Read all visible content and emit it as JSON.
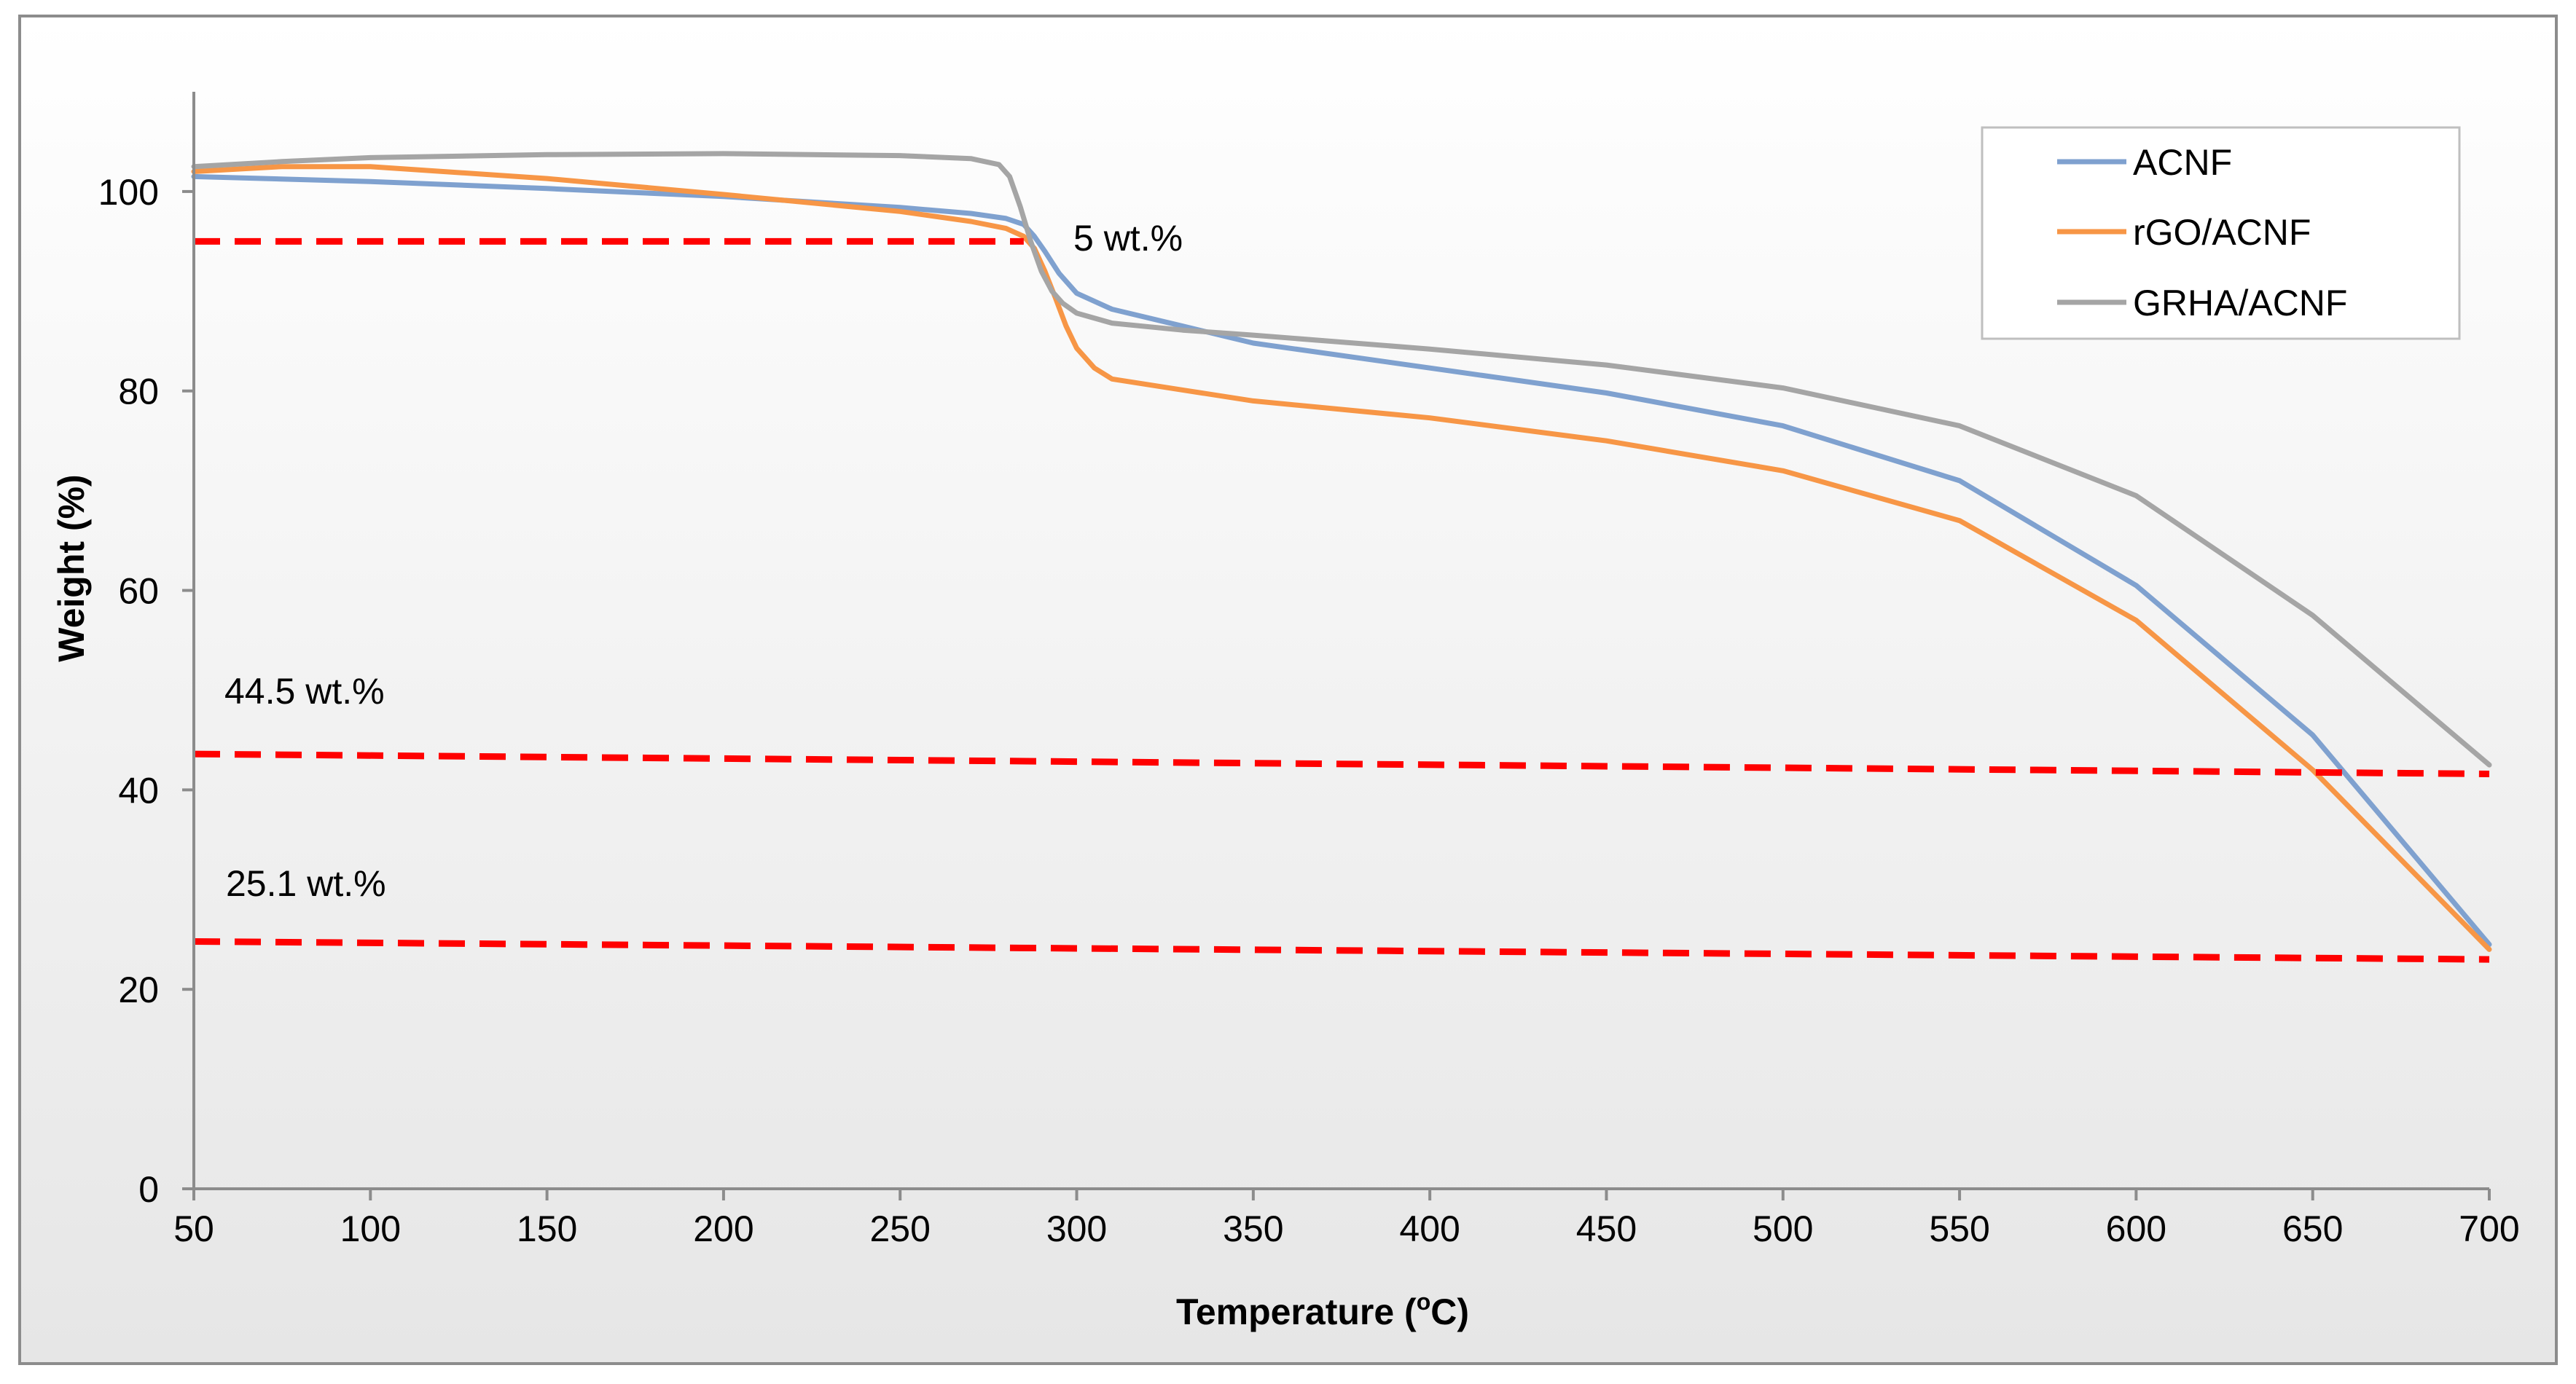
{
  "chart_data": {
    "type": "line",
    "xlabel": "Temperature (",
    "xlabel_sup": "o",
    "xlabel_end": "C)",
    "ylabel": "Weight (%)",
    "xlim": [
      50,
      700
    ],
    "ylim": [
      0,
      110
    ],
    "x_ticks": [
      "50",
      "100",
      "150",
      "200",
      "250",
      "300",
      "350",
      "400",
      "450",
      "500",
      "550",
      "600",
      "650",
      "700"
    ],
    "y_ticks": [
      "0",
      "20",
      "40",
      "60",
      "80",
      "100"
    ],
    "x_tick_values": [
      50,
      100,
      150,
      200,
      250,
      300,
      350,
      400,
      450,
      500,
      550,
      600,
      650,
      700
    ],
    "y_tick_values": [
      0,
      20,
      40,
      60,
      80,
      100
    ],
    "legend_position": "top-right",
    "series": [
      {
        "name": "ACNF",
        "color": "#7fa1cf",
        "x": [
          50,
          100,
          150,
          200,
          250,
          270,
          280,
          285,
          288,
          291,
          295,
          300,
          310,
          330,
          350,
          400,
          450,
          500,
          550,
          600,
          650,
          700
        ],
        "y": [
          101.5,
          101.0,
          100.3,
          99.5,
          98.4,
          97.8,
          97.3,
          96.7,
          95.5,
          94.0,
          91.8,
          89.8,
          88.2,
          86.5,
          84.8,
          82.3,
          79.8,
          76.5,
          71.0,
          60.5,
          45.5,
          24.5
        ]
      },
      {
        "name": "rGO/ACNF",
        "color": "#f79646",
        "x": [
          50,
          75,
          100,
          150,
          200,
          250,
          270,
          280,
          285,
          288,
          291,
          294,
          297,
          300,
          305,
          310,
          330,
          350,
          400,
          450,
          500,
          550,
          600,
          650,
          700
        ],
        "y": [
          102.0,
          102.5,
          102.5,
          101.3,
          99.7,
          98.0,
          97.0,
          96.3,
          95.5,
          94.3,
          92.0,
          89.3,
          86.5,
          84.3,
          82.3,
          81.2,
          80.1,
          79.0,
          77.3,
          75.0,
          72.0,
          67.0,
          57.0,
          42.0,
          24.0
        ]
      },
      {
        "name": "GRHA/ACNF",
        "color": "#a5a5a5",
        "x": [
          50,
          75,
          100,
          150,
          200,
          250,
          270,
          278,
          281,
          284,
          287,
          290,
          293,
          296,
          300,
          310,
          330,
          350,
          400,
          450,
          500,
          550,
          600,
          650,
          700
        ],
        "y": [
          102.5,
          103.0,
          103.4,
          103.7,
          103.8,
          103.6,
          103.3,
          102.7,
          101.5,
          98.5,
          95.0,
          92.0,
          90.0,
          88.8,
          87.8,
          86.8,
          86.1,
          85.6,
          84.2,
          82.6,
          80.3,
          76.5,
          69.5,
          57.5,
          42.5
        ]
      }
    ],
    "reference_lines": [
      {
        "label": "5 wt.%",
        "x": [
          50,
          285
        ],
        "y": [
          95.0,
          95.0
        ],
        "color": "#ff0000"
      },
      {
        "label": "44.5 wt.%",
        "x": [
          50,
          700
        ],
        "y": [
          43.6,
          41.6
        ],
        "color": "#ff0000"
      },
      {
        "label": "25.1 wt.%",
        "x": [
          50,
          700
        ],
        "y": [
          24.8,
          23.0
        ],
        "color": "#ff0000"
      }
    ]
  }
}
